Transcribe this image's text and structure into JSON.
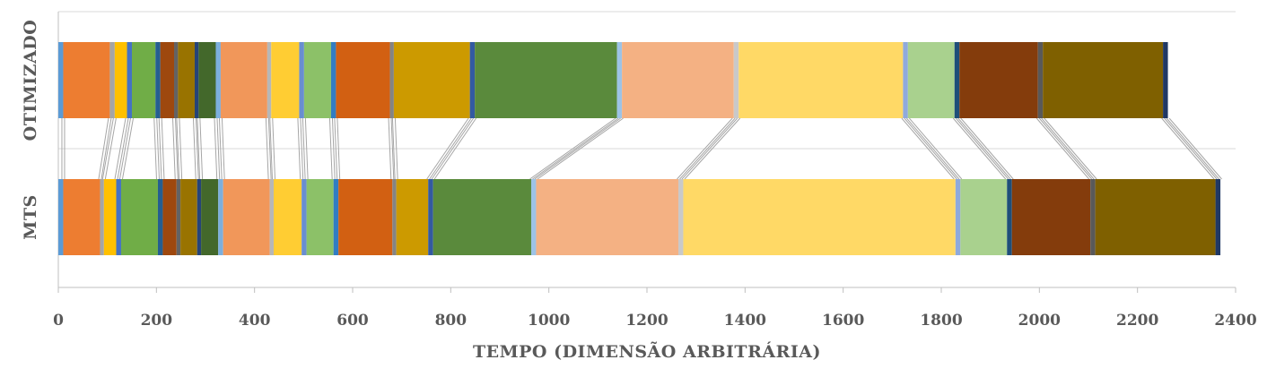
{
  "chart_data": {
    "type": "bar",
    "orientation": "horizontal",
    "stacked": true,
    "categories": [
      "OTIMIZADO",
      "MTS"
    ],
    "xlabel": "TEMPO (DIMENSÃO ARBITRÁRIA)",
    "ylabel": "",
    "xlim": [
      0,
      2400
    ],
    "xticks": [
      "0",
      "200",
      "400",
      "600",
      "800",
      "1000",
      "1200",
      "1400",
      "1600",
      "1800",
      "2000",
      "2200",
      "2400"
    ],
    "grid": true,
    "connector_lines": true,
    "segments": [
      {
        "color": "#5b9bd5",
        "values": [
          10,
          10
        ]
      },
      {
        "color": "#ed7d31",
        "values": [
          95,
          75
        ]
      },
      {
        "color": "#a5a5a5",
        "values": [
          10,
          8
        ]
      },
      {
        "color": "#ffc000",
        "values": [
          25,
          25
        ]
      },
      {
        "color": "#4472c4",
        "values": [
          10,
          10
        ]
      },
      {
        "color": "#70ad47",
        "values": [
          48,
          75
        ]
      },
      {
        "color": "#255e91",
        "values": [
          10,
          10
        ]
      },
      {
        "color": "#9e480e",
        "values": [
          28,
          28
        ]
      },
      {
        "color": "#636363",
        "values": [
          8,
          8
        ]
      },
      {
        "color": "#997300",
        "values": [
          34,
          34
        ]
      },
      {
        "color": "#264478",
        "values": [
          8,
          8
        ]
      },
      {
        "color": "#43682b",
        "values": [
          35,
          35
        ]
      },
      {
        "color": "#7cafdd",
        "values": [
          10,
          10
        ]
      },
      {
        "color": "#f1975a",
        "values": [
          95,
          95
        ]
      },
      {
        "color": "#b7b7b7",
        "values": [
          8,
          8
        ]
      },
      {
        "color": "#ffcd33",
        "values": [
          57,
          57
        ]
      },
      {
        "color": "#698ed0",
        "values": [
          10,
          10
        ]
      },
      {
        "color": "#8cc168",
        "values": [
          55,
          55
        ]
      },
      {
        "color": "#327dc2",
        "values": [
          10,
          10
        ]
      },
      {
        "color": "#d26012",
        "values": [
          110,
          110
        ]
      },
      {
        "color": "#848484",
        "values": [
          8,
          8
        ]
      },
      {
        "color": "#cc9a00",
        "values": [
          155,
          65
        ]
      },
      {
        "color": "#335aa1",
        "values": [
          10,
          10
        ]
      },
      {
        "color": "#5a8a3c",
        "values": [
          290,
          200
        ]
      },
      {
        "color": "#9dc3e6",
        "values": [
          10,
          10
        ]
      },
      {
        "color": "#f4b183",
        "values": [
          228,
          290
        ]
      },
      {
        "color": "#c9c9c9",
        "values": [
          10,
          10
        ]
      },
      {
        "color": "#ffd966",
        "values": [
          335,
          555
        ]
      },
      {
        "color": "#8faadc",
        "values": [
          10,
          10
        ]
      },
      {
        "color": "#a9d18e",
        "values": [
          95,
          95
        ]
      },
      {
        "color": "#1f4e79",
        "values": [
          10,
          10
        ]
      },
      {
        "color": "#843c0c",
        "values": [
          160,
          160
        ]
      },
      {
        "color": "#595959",
        "values": [
          10,
          10
        ]
      },
      {
        "color": "#7f6000",
        "values": [
          245,
          245
        ]
      },
      {
        "color": "#203864",
        "values": [
          10,
          10
        ]
      }
    ]
  }
}
